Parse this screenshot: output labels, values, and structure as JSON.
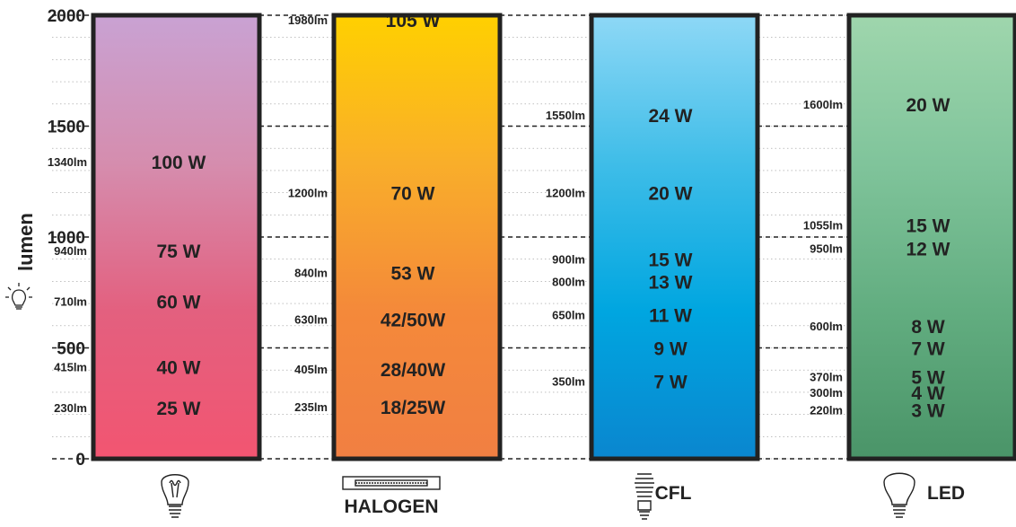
{
  "chart_data": {
    "type": "bar",
    "ylabel": "lumen",
    "ylim": [
      0,
      2000
    ],
    "y_ticks": [
      0,
      500,
      1000,
      1500,
      2000
    ],
    "categories": [
      {
        "name": "",
        "colors": [
          "#c9a2d3",
          "#d58dae",
          "#e3607f",
          "#f25571"
        ],
        "points": [
          {
            "lumen": 1340,
            "lumen_label": "1340lm",
            "watt_label": "100 W"
          },
          {
            "lumen": 940,
            "lumen_label": "940lm",
            "watt_label": "75 W"
          },
          {
            "lumen": 710,
            "lumen_label": "710lm",
            "watt_label": "60 W"
          },
          {
            "lumen": 415,
            "lumen_label": "415lm",
            "watt_label": "40 W"
          },
          {
            "lumen": 230,
            "lumen_label": "230lm",
            "watt_label": "25 W"
          }
        ]
      },
      {
        "name": "HALOGEN",
        "colors": [
          "#ffd000",
          "#f9ae2a",
          "#f4893a",
          "#f17f42"
        ],
        "points": [
          {
            "lumen": 1980,
            "lumen_label": "1980lm",
            "watt_label": "105 W"
          },
          {
            "lumen": 1200,
            "lumen_label": "1200lm",
            "watt_label": "70 W"
          },
          {
            "lumen": 840,
            "lumen_label": "840lm",
            "watt_label": "53 W"
          },
          {
            "lumen": 630,
            "lumen_label": "630lm",
            "watt_label": "42/50W"
          },
          {
            "lumen": 405,
            "lumen_label": "405lm",
            "watt_label": "28/40W"
          },
          {
            "lumen": 235,
            "lumen_label": "235lm",
            "watt_label": "18/25W"
          }
        ]
      },
      {
        "name": "CFL",
        "colors": [
          "#8ed8f6",
          "#3fbde8",
          "#00a6e0",
          "#0a86cf"
        ],
        "points": [
          {
            "lumen": 1550,
            "lumen_label": "1550lm",
            "watt_label": "24 W"
          },
          {
            "lumen": 1200,
            "lumen_label": "1200lm",
            "watt_label": "20 W"
          },
          {
            "lumen": 900,
            "lumen_label": "900lm",
            "watt_label": "15 W"
          },
          {
            "lumen": 800,
            "lumen_label": "800lm",
            "watt_label": "13 W"
          },
          {
            "lumen": 650,
            "lumen_label": "650lm",
            "watt_label": "11 W"
          },
          {
            "lumen": 500,
            "lumen_label": "",
            "watt_label": "9 W"
          },
          {
            "lumen": 350,
            "lumen_label": "350lm",
            "watt_label": "7 W"
          }
        ]
      },
      {
        "name": "LED",
        "colors": [
          "#9fd6ad",
          "#80c49b",
          "#62ad80",
          "#4a9468"
        ],
        "points": [
          {
            "lumen": 1600,
            "lumen_label": "1600lm",
            "watt_label": "20 W"
          },
          {
            "lumen": 1055,
            "lumen_label": "1055lm",
            "watt_label": "15 W"
          },
          {
            "lumen": 950,
            "lumen_label": "950lm",
            "watt_label": "12 W"
          },
          {
            "lumen": 600,
            "lumen_label": "600lm",
            "watt_label": "8 W"
          },
          {
            "lumen": 500,
            "lumen_label": "",
            "watt_label": "7 W"
          },
          {
            "lumen": 370,
            "lumen_label": "370lm",
            "watt_label": "5 W"
          },
          {
            "lumen": 300,
            "lumen_label": "300lm",
            "watt_label": "4 W"
          },
          {
            "lumen": 220,
            "lumen_label": "220lm",
            "watt_label": "3 W"
          }
        ]
      }
    ],
    "icons": [
      "incandescent-bulb-icon",
      "halogen-tube-icon",
      "cfl-spiral-icon",
      "led-bulb-icon",
      "glowing-bulb-icon"
    ],
    "grid": true,
    "legend": "none"
  }
}
